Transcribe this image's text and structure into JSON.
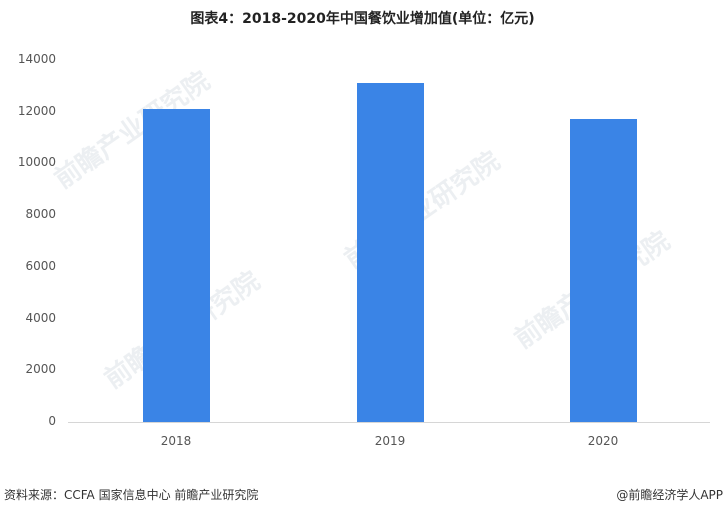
{
  "chart_data": {
    "type": "bar",
    "title": "图表4：2018-2020年中国餐饮业增加值(单位：亿元)",
    "categories": [
      "2018",
      "2019",
      "2020"
    ],
    "values": [
      12100,
      13100,
      11700
    ],
    "xlabel": "",
    "ylabel": "",
    "ylim": [
      0,
      14000
    ],
    "yticks": [
      "0",
      "2000",
      "4000",
      "6000",
      "8000",
      "10000",
      "12000",
      "14000"
    ],
    "grid": false,
    "legend": null,
    "bar_color": "#3a84e6"
  },
  "footer": {
    "source": "资料来源：CCFA 国家信息中心 前瞻产业研究院",
    "credit": "@前瞻经济学人APP"
  },
  "watermark": "前瞻产业研究院"
}
